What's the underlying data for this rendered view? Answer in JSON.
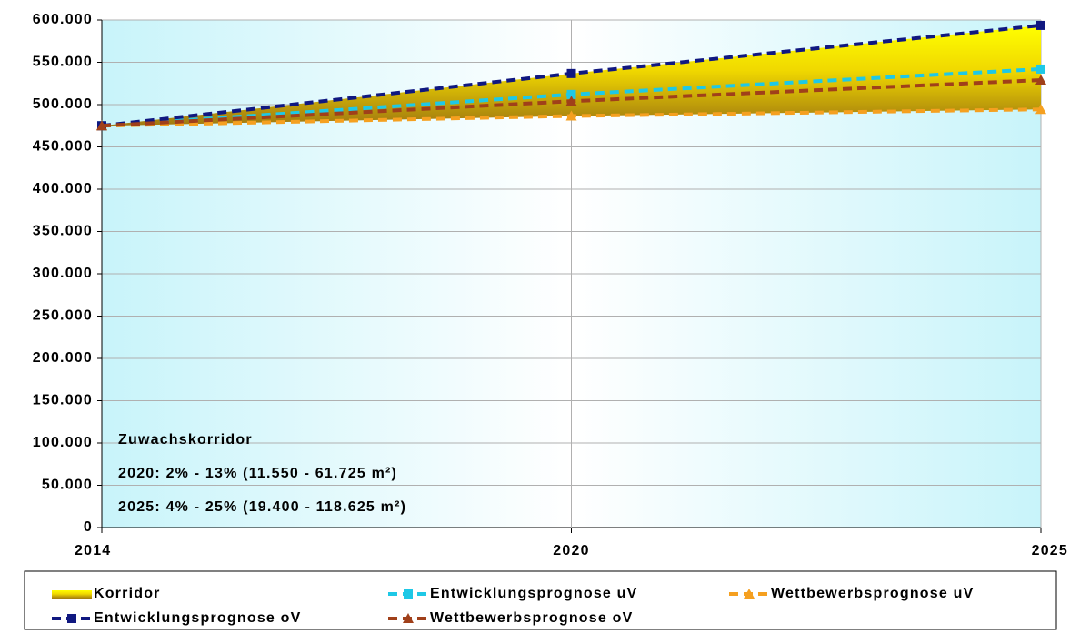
{
  "chart_data": {
    "type": "line",
    "categories": [
      "2014",
      "2020",
      "2025"
    ],
    "ylim": [
      0,
      600000
    ],
    "yticks": [
      0,
      {
        "value": 50000,
        "label": "50.000"
      },
      {
        "value": 100000,
        "label": "100.000"
      },
      {
        "value": 150000,
        "label": "150.000"
      },
      {
        "value": 200000,
        "label": "200.000"
      },
      {
        "value": 250000,
        "label": "250.000"
      },
      {
        "value": 300000,
        "label": "300.000"
      },
      {
        "value": 350000,
        "label": "350.000"
      },
      {
        "value": 400000,
        "label": "400.000"
      },
      {
        "value": 450000,
        "label": "450.000"
      },
      {
        "value": 500000,
        "label": "500.000"
      },
      {
        "value": 550000,
        "label": "550.000"
      },
      {
        "value": 600000,
        "label": "600.000"
      }
    ],
    "grid": true,
    "legend": "bottom",
    "series": [
      {
        "name": "Korridor",
        "color": "#ffff00",
        "kind": "area",
        "stacked_on": "Wettbewerbsprognose uV",
        "values": [
          0,
          50175,
          99225
        ]
      },
      {
        "name": "Entwicklungsprognose uV",
        "color": "#1ec8e6",
        "marker": "square",
        "values": [
          475000,
          512000,
          542000
        ]
      },
      {
        "name": "Wettbewerbsprognose uV",
        "color": "#f5a020",
        "marker": "triangle",
        "values": [
          475000,
          486550,
          494400
        ]
      },
      {
        "name": "Entwicklungsprognose oV",
        "color": "#101880",
        "marker": "square",
        "values": [
          475000,
          536725,
          593625
        ]
      },
      {
        "name": "Wettbewerbsprognose oV",
        "color": "#a0401a",
        "marker": "triangle",
        "values": [
          475000,
          504000,
          529000
        ]
      }
    ],
    "annotations": [
      "Zuwachskorridor",
      "2020: 2% - 13% (11.550 - 61.725 m²)",
      "2025: 4% - 25% (19.400 - 118.625 m²)"
    ]
  }
}
